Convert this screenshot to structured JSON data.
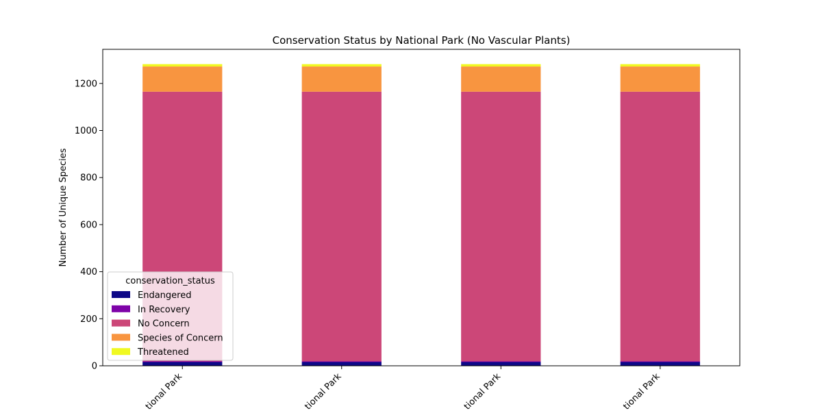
{
  "chart_data": {
    "type": "bar",
    "stacked": true,
    "title": "Conservation Status by National Park (No Vascular Plants)",
    "xlabel": "",
    "ylabel": "Number of Unique Species",
    "ylim": [
      0,
      1345
    ],
    "yticks": [
      0,
      200,
      400,
      600,
      800,
      1000,
      1200
    ],
    "grid": false,
    "categories": [
      "tional Park",
      "tional Park",
      "tional Park",
      "tional Park"
    ],
    "series": [
      {
        "name": "Endangered",
        "color": "#0d0887",
        "values": [
          16,
          16,
          16,
          16
        ]
      },
      {
        "name": "In Recovery",
        "color": "#7e03a8",
        "values": [
          3,
          3,
          3,
          3
        ]
      },
      {
        "name": "No Concern",
        "color": "#cc4778",
        "values": [
          1146,
          1146,
          1146,
          1146
        ]
      },
      {
        "name": "Species of Concern",
        "color": "#f89540",
        "values": [
          107,
          107,
          107,
          107
        ]
      },
      {
        "name": "Threatened",
        "color": "#f0f921",
        "values": [
          10,
          10,
          10,
          10
        ]
      }
    ],
    "legend": {
      "title": "conservation_status",
      "placement": "lower-left"
    }
  }
}
